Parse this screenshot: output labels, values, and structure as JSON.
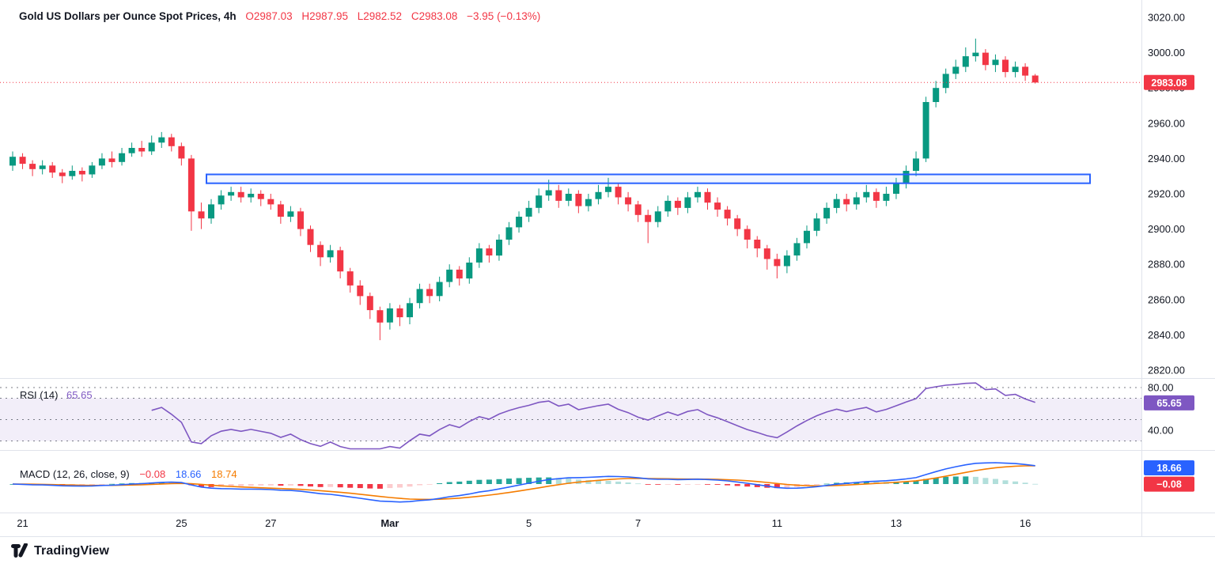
{
  "header": {
    "title": "Gold US Dollars per Ounce Spot Prices, 4h",
    "ohlc": {
      "open": "O2987.03",
      "high": "H2987.95",
      "low": "L2982.52",
      "close": "C2983.08",
      "change": "−3.95 (−0.13%)"
    }
  },
  "price_axis": {
    "ticks": [
      "3020.00",
      "3000.00",
      "2980.00",
      "2960.00",
      "2940.00",
      "2920.00",
      "2900.00",
      "2880.00",
      "2860.00",
      "2840.00",
      "2820.00"
    ],
    "current_badge": "2983.08"
  },
  "rsi_pane": {
    "label": "RSI (14)",
    "value": "65.65",
    "badge": "65.65",
    "axis_labels": [
      "80.00",
      "40.00"
    ]
  },
  "macd_pane": {
    "label": "MACD (12, 26, close, 9)",
    "hist_value": "−0.08",
    "macd_value": "18.66",
    "signal_value": "18.74",
    "badges": {
      "macd": "18.66",
      "hist": "−0.08"
    }
  },
  "footer": {
    "brand": "TradingView"
  },
  "colors": {
    "up": "#089981",
    "down": "#F23645",
    "accent_blue": "#2962FF",
    "rsi_purple": "#7E57C2",
    "signal_orange": "#F57C00",
    "hist_pos": "#26A69A",
    "hist_pos_weak": "#B2DFDB",
    "hist_neg": "#F23645",
    "hist_neg_weak": "#FCCBCD",
    "grid": "#E0E3EB",
    "text": "#131722",
    "dashed": "#787B86"
  },
  "chart_data": {
    "type": "candlestick",
    "title": "Gold US Dollars per Ounce Spot Prices, 4h",
    "timeframe": "4h",
    "ylim": [
      2820,
      3020
    ],
    "current_price": 2983.08,
    "last_ohlc": {
      "o": 2987.03,
      "h": 2987.95,
      "l": 2982.52,
      "c": 2983.08,
      "change": -3.95,
      "change_pct": -0.13
    },
    "resistance_zone": {
      "price_top": 2931,
      "price_bottom": 2926,
      "from_index": 20,
      "to_index": 109
    },
    "x_axis_labels": [
      {
        "text": "21",
        "index": 1
      },
      {
        "text": "25",
        "index": 17
      },
      {
        "text": "27",
        "index": 26
      },
      {
        "text": "Mar",
        "index": 38
      },
      {
        "text": "5",
        "index": 52
      },
      {
        "text": "7",
        "index": 63
      },
      {
        "text": "11",
        "index": 77
      },
      {
        "text": "13",
        "index": 89
      },
      {
        "text": "16",
        "index": 102
      }
    ],
    "indicators": {
      "rsi": {
        "period": 14,
        "current": 65.65,
        "upper_band": 70,
        "middle": 50,
        "lower_band": 30,
        "axis_ticks": [
          80,
          40
        ]
      },
      "macd": {
        "fast": 12,
        "slow": 26,
        "source": "close",
        "signal": 9,
        "current_macd": 18.66,
        "current_signal": 18.74,
        "current_hist": -0.08
      }
    },
    "candles": [
      [
        2936,
        2944,
        2933,
        2941
      ],
      [
        2941,
        2943,
        2934,
        2937
      ],
      [
        2937,
        2939,
        2930,
        2934
      ],
      [
        2934,
        2939,
        2931,
        2936
      ],
      [
        2936,
        2938,
        2929,
        2932
      ],
      [
        2932,
        2934,
        2926,
        2930
      ],
      [
        2930,
        2936,
        2928,
        2933
      ],
      [
        2933,
        2935,
        2927,
        2931
      ],
      [
        2931,
        2938,
        2929,
        2936
      ],
      [
        2936,
        2943,
        2934,
        2940
      ],
      [
        2940,
        2944,
        2935,
        2938
      ],
      [
        2938,
        2946,
        2936,
        2943
      ],
      [
        2943,
        2949,
        2941,
        2946
      ],
      [
        2946,
        2950,
        2941,
        2944
      ],
      [
        2944,
        2953,
        2942,
        2949
      ],
      [
        2949,
        2955,
        2946,
        2952
      ],
      [
        2952,
        2954,
        2944,
        2947
      ],
      [
        2947,
        2949,
        2936,
        2940
      ],
      [
        2940,
        2942,
        2899,
        2910
      ],
      [
        2910,
        2915,
        2900,
        2906
      ],
      [
        2906,
        2917,
        2903,
        2914
      ],
      [
        2914,
        2922,
        2911,
        2919
      ],
      [
        2919,
        2924,
        2916,
        2921
      ],
      [
        2921,
        2924,
        2915,
        2918
      ],
      [
        2918,
        2923,
        2915,
        2920
      ],
      [
        2920,
        2922,
        2913,
        2917
      ],
      [
        2917,
        2920,
        2911,
        2914
      ],
      [
        2914,
        2916,
        2903,
        2907
      ],
      [
        2907,
        2913,
        2904,
        2910
      ],
      [
        2910,
        2912,
        2896,
        2900
      ],
      [
        2900,
        2902,
        2887,
        2891
      ],
      [
        2891,
        2893,
        2879,
        2884
      ],
      [
        2884,
        2891,
        2881,
        2888
      ],
      [
        2888,
        2890,
        2872,
        2876
      ],
      [
        2876,
        2878,
        2864,
        2868
      ],
      [
        2868,
        2871,
        2857,
        2862
      ],
      [
        2862,
        2864,
        2849,
        2854
      ],
      [
        2854,
        2856,
        2837,
        2847
      ],
      [
        2847,
        2858,
        2843,
        2855
      ],
      [
        2855,
        2857,
        2845,
        2850
      ],
      [
        2850,
        2861,
        2846,
        2858
      ],
      [
        2858,
        2869,
        2855,
        2866
      ],
      [
        2866,
        2869,
        2858,
        2862
      ],
      [
        2862,
        2873,
        2859,
        2870
      ],
      [
        2870,
        2880,
        2867,
        2877
      ],
      [
        2877,
        2879,
        2868,
        2872
      ],
      [
        2872,
        2884,
        2869,
        2881
      ],
      [
        2881,
        2892,
        2878,
        2889
      ],
      [
        2889,
        2891,
        2881,
        2885
      ],
      [
        2885,
        2897,
        2882,
        2894
      ],
      [
        2894,
        2904,
        2891,
        2901
      ],
      [
        2901,
        2910,
        2898,
        2907
      ],
      [
        2907,
        2916,
        2904,
        2912
      ],
      [
        2912,
        2923,
        2909,
        2919
      ],
      [
        2919,
        2928,
        2916,
        2922
      ],
      [
        2922,
        2925,
        2912,
        2916
      ],
      [
        2916,
        2923,
        2913,
        2920
      ],
      [
        2920,
        2922,
        2909,
        2913
      ],
      [
        2913,
        2920,
        2910,
        2917
      ],
      [
        2917,
        2925,
        2914,
        2921
      ],
      [
        2921,
        2929,
        2918,
        2924
      ],
      [
        2924,
        2926,
        2914,
        2918
      ],
      [
        2918,
        2921,
        2910,
        2914
      ],
      [
        2914,
        2916,
        2904,
        2908
      ],
      [
        2908,
        2911,
        2892,
        2904
      ],
      [
        2904,
        2913,
        2901,
        2910
      ],
      [
        2910,
        2919,
        2907,
        2916
      ],
      [
        2916,
        2918,
        2908,
        2912
      ],
      [
        2912,
        2921,
        2909,
        2918
      ],
      [
        2918,
        2924,
        2915,
        2921
      ],
      [
        2921,
        2923,
        2911,
        2915
      ],
      [
        2915,
        2918,
        2907,
        2911
      ],
      [
        2911,
        2913,
        2902,
        2906
      ],
      [
        2906,
        2908,
        2896,
        2900
      ],
      [
        2900,
        2902,
        2889,
        2894
      ],
      [
        2894,
        2896,
        2884,
        2889
      ],
      [
        2889,
        2891,
        2877,
        2883
      ],
      [
        2883,
        2886,
        2872,
        2879
      ],
      [
        2879,
        2888,
        2875,
        2885
      ],
      [
        2885,
        2895,
        2882,
        2892
      ],
      [
        2892,
        2902,
        2889,
        2899
      ],
      [
        2899,
        2909,
        2896,
        2906
      ],
      [
        2906,
        2915,
        2903,
        2912
      ],
      [
        2912,
        2920,
        2909,
        2917
      ],
      [
        2917,
        2920,
        2910,
        2914
      ],
      [
        2914,
        2921,
        2911,
        2918
      ],
      [
        2918,
        2925,
        2915,
        2921
      ],
      [
        2921,
        2923,
        2912,
        2916
      ],
      [
        2916,
        2924,
        2913,
        2920
      ],
      [
        2920,
        2929,
        2917,
        2926
      ],
      [
        2926,
        2936,
        2923,
        2933
      ],
      [
        2933,
        2944,
        2930,
        2940
      ],
      [
        2940,
        2975,
        2938,
        2972
      ],
      [
        2972,
        2984,
        2969,
        2980
      ],
      [
        2980,
        2991,
        2977,
        2988
      ],
      [
        2988,
        2996,
        2985,
        2992
      ],
      [
        2992,
        3003,
        2989,
        2998
      ],
      [
        2998,
        3008,
        2995,
        3000
      ],
      [
        3000,
        3002,
        2990,
        2993
      ],
      [
        2993,
        2999,
        2989,
        2996
      ],
      [
        2996,
        2998,
        2986,
        2989
      ],
      [
        2989,
        2995,
        2986,
        2992
      ],
      [
        2992,
        2994,
        2984,
        2987
      ],
      [
        2987.03,
        2987.95,
        2982.52,
        2983.08
      ]
    ]
  }
}
